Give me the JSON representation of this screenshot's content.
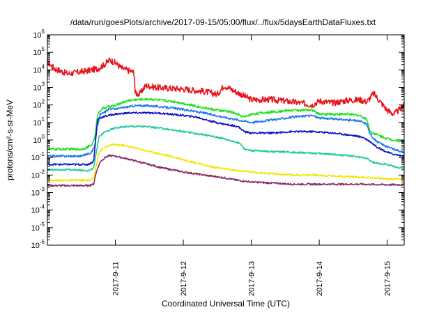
{
  "chart_data": {
    "type": "line",
    "title": "/data/run/goesPlots/archive/2017-09-15/05:00/flux/../flux/5daysEarthDataFluxes.txt",
    "xlabel": "Coordinated Universal Time (UTC)",
    "ylabel": "protons/cm²-s-sr-MeV",
    "yscale": "log",
    "ylim": [
      1e-06,
      1000000.0
    ],
    "xlim": [
      0,
      5.25
    ],
    "y_ticks": [
      {
        "value": 1e-06,
        "base": "10",
        "exp": "-6"
      },
      {
        "value": 1e-05,
        "base": "10",
        "exp": "-5"
      },
      {
        "value": 0.0001,
        "base": "10",
        "exp": "-4"
      },
      {
        "value": 0.001,
        "base": "10",
        "exp": "-3"
      },
      {
        "value": 0.01,
        "base": "10",
        "exp": "-2"
      },
      {
        "value": 0.1,
        "base": "10",
        "exp": "-1"
      },
      {
        "value": 1,
        "base": "10",
        "exp": "0"
      },
      {
        "value": 10,
        "base": "10",
        "exp": "1"
      },
      {
        "value": 100,
        "base": "10",
        "exp": "2"
      },
      {
        "value": 1000,
        "base": "10",
        "exp": "3"
      },
      {
        "value": 10000,
        "base": "10",
        "exp": "4"
      },
      {
        "value": 100000,
        "base": "10",
        "exp": "5"
      },
      {
        "value": 1000000,
        "base": "10",
        "exp": "6"
      }
    ],
    "x_ticks": [
      {
        "value": 1,
        "label": "2017-9-11"
      },
      {
        "value": 2,
        "label": "2017-9-12"
      },
      {
        "value": 3,
        "label": "2017-9-13"
      },
      {
        "value": 4,
        "label": "2017-9-14"
      },
      {
        "value": 5,
        "label": "2017-9-15"
      }
    ],
    "grid": false,
    "series": [
      {
        "color": "#e8141c",
        "noise": 0.18,
        "points": [
          [
            0,
            30000
          ],
          [
            0.1,
            12000
          ],
          [
            0.3,
            6000
          ],
          [
            0.6,
            9000
          ],
          [
            0.75,
            12000
          ],
          [
            0.85,
            22000
          ],
          [
            0.92,
            38000
          ],
          [
            1.0,
            25000
          ],
          [
            1.1,
            12000
          ],
          [
            1.2,
            9000
          ],
          [
            1.28,
            7000
          ],
          [
            1.29,
            500
          ],
          [
            1.35,
            400
          ],
          [
            1.45,
            1300
          ],
          [
            1.6,
            1000
          ],
          [
            2.0,
            800
          ],
          [
            2.3,
            600
          ],
          [
            2.5,
            400
          ],
          [
            2.6,
            1300
          ],
          [
            2.7,
            800
          ],
          [
            2.8,
            500
          ],
          [
            3.0,
            200
          ],
          [
            3.3,
            200
          ],
          [
            3.6,
            150
          ],
          [
            3.9,
            100
          ],
          [
            4.0,
            170
          ],
          [
            4.2,
            130
          ],
          [
            4.4,
            180
          ],
          [
            4.6,
            200
          ],
          [
            4.7,
            150
          ],
          [
            4.8,
            450
          ],
          [
            4.9,
            150
          ],
          [
            5.0,
            50
          ],
          [
            5.1,
            30
          ],
          [
            5.2,
            60
          ],
          [
            5.25,
            150
          ]
        ]
      },
      {
        "color": "#22e022",
        "noise": 0.07,
        "points": [
          [
            0,
            0.3
          ],
          [
            0.5,
            0.3
          ],
          [
            0.6,
            0.4
          ],
          [
            0.65,
            0.5
          ],
          [
            0.7,
            1.5
          ],
          [
            0.74,
            30
          ],
          [
            0.8,
            60
          ],
          [
            0.9,
            80
          ],
          [
            1.0,
            90
          ],
          [
            1.1,
            140
          ],
          [
            1.2,
            180
          ],
          [
            1.3,
            200
          ],
          [
            1.5,
            220
          ],
          [
            1.7,
            180
          ],
          [
            1.9,
            150
          ],
          [
            2.1,
            100
          ],
          [
            2.3,
            70
          ],
          [
            2.5,
            50
          ],
          [
            2.7,
            40
          ],
          [
            2.9,
            20
          ],
          [
            3.0,
            30
          ],
          [
            3.3,
            40
          ],
          [
            3.6,
            50
          ],
          [
            3.9,
            50
          ],
          [
            4.0,
            30
          ],
          [
            4.2,
            30
          ],
          [
            4.4,
            30
          ],
          [
            4.6,
            25
          ],
          [
            4.7,
            15
          ],
          [
            4.75,
            3
          ],
          [
            4.85,
            2
          ],
          [
            5.0,
            1.2
          ],
          [
            5.1,
            1
          ],
          [
            5.25,
            0.8
          ]
        ]
      },
      {
        "color": "#1e78f0",
        "noise": 0.06,
        "points": [
          [
            0,
            0.12
          ],
          [
            0.5,
            0.12
          ],
          [
            0.65,
            0.2
          ],
          [
            0.7,
            0.5
          ],
          [
            0.73,
            5
          ],
          [
            0.78,
            30
          ],
          [
            0.85,
            40
          ],
          [
            0.9,
            60
          ],
          [
            1.0,
            60
          ],
          [
            1.2,
            80
          ],
          [
            1.3,
            90
          ],
          [
            1.5,
            90
          ],
          [
            1.8,
            70
          ],
          [
            2.0,
            55
          ],
          [
            2.3,
            35
          ],
          [
            2.6,
            20
          ],
          [
            2.9,
            12
          ],
          [
            3.0,
            10
          ],
          [
            3.3,
            14
          ],
          [
            3.6,
            20
          ],
          [
            3.9,
            25
          ],
          [
            4.0,
            18
          ],
          [
            4.3,
            15
          ],
          [
            4.6,
            12
          ],
          [
            4.7,
            8
          ],
          [
            4.75,
            2
          ],
          [
            4.85,
            0.8
          ],
          [
            5.0,
            0.4
          ],
          [
            5.1,
            0.3
          ],
          [
            5.25,
            0.2
          ]
        ]
      },
      {
        "color": "#1010c8",
        "noise": 0.05,
        "points": [
          [
            0,
            0.04
          ],
          [
            0.3,
            0.04
          ],
          [
            0.6,
            0.04
          ],
          [
            0.68,
            0.06
          ],
          [
            0.71,
            1
          ],
          [
            0.74,
            15
          ],
          [
            0.8,
            20
          ],
          [
            0.9,
            25
          ],
          [
            1.0,
            30
          ],
          [
            1.2,
            35
          ],
          [
            1.4,
            35
          ],
          [
            1.6,
            35
          ],
          [
            1.8,
            30
          ],
          [
            2.0,
            25
          ],
          [
            2.2,
            20
          ],
          [
            2.4,
            12
          ],
          [
            2.6,
            8
          ],
          [
            2.8,
            6
          ],
          [
            2.9,
            3
          ],
          [
            3.0,
            2.5
          ],
          [
            3.3,
            2.5
          ],
          [
            3.6,
            3
          ],
          [
            3.9,
            3
          ],
          [
            4.2,
            2.5
          ],
          [
            4.5,
            1.8
          ],
          [
            4.65,
            1.4
          ],
          [
            4.75,
            0.8
          ],
          [
            4.85,
            0.4
          ],
          [
            5.0,
            0.2
          ],
          [
            5.1,
            0.15
          ],
          [
            5.25,
            0.12
          ]
        ]
      },
      {
        "color": "#1ec8a0",
        "noise": 0.05,
        "points": [
          [
            0,
            0.02
          ],
          [
            0.3,
            0.02
          ],
          [
            0.6,
            0.018
          ],
          [
            0.68,
            0.025
          ],
          [
            0.72,
            0.2
          ],
          [
            0.76,
            1.5
          ],
          [
            0.82,
            2.5
          ],
          [
            0.9,
            3.5
          ],
          [
            1.0,
            5
          ],
          [
            1.2,
            6
          ],
          [
            1.4,
            6
          ],
          [
            1.6,
            5
          ],
          [
            1.8,
            4
          ],
          [
            2.0,
            3
          ],
          [
            2.3,
            2
          ],
          [
            2.6,
            1.2
          ],
          [
            2.85,
            0.6
          ],
          [
            2.9,
            0.3
          ],
          [
            3.0,
            0.25
          ],
          [
            3.3,
            0.22
          ],
          [
            3.6,
            0.2
          ],
          [
            3.9,
            0.18
          ],
          [
            4.2,
            0.15
          ],
          [
            4.5,
            0.12
          ],
          [
            4.7,
            0.09
          ],
          [
            4.8,
            0.05
          ],
          [
            5.0,
            0.04
          ],
          [
            5.1,
            0.03
          ],
          [
            5.25,
            0.025
          ]
        ]
      },
      {
        "color": "#f2e600",
        "noise": 0.05,
        "points": [
          [
            0,
            0.005
          ],
          [
            0.3,
            0.005
          ],
          [
            0.6,
            0.005
          ],
          [
            0.68,
            0.006
          ],
          [
            0.72,
            0.04
          ],
          [
            0.76,
            0.2
          ],
          [
            0.85,
            0.4
          ],
          [
            0.95,
            0.55
          ],
          [
            1.1,
            0.5
          ],
          [
            1.3,
            0.35
          ],
          [
            1.5,
            0.22
          ],
          [
            1.8,
            0.12
          ],
          [
            2.1,
            0.06
          ],
          [
            2.4,
            0.03
          ],
          [
            2.7,
            0.02
          ],
          [
            3.0,
            0.015
          ],
          [
            3.3,
            0.012
          ],
          [
            3.6,
            0.01
          ],
          [
            3.9,
            0.01
          ],
          [
            4.2,
            0.009
          ],
          [
            4.5,
            0.008
          ],
          [
            4.8,
            0.007
          ],
          [
            5.0,
            0.006
          ],
          [
            5.25,
            0.006
          ]
        ]
      },
      {
        "color": "#8b2a62",
        "noise": 0.05,
        "points": [
          [
            0,
            0.0025
          ],
          [
            0.3,
            0.0025
          ],
          [
            0.6,
            0.0025
          ],
          [
            0.68,
            0.003
          ],
          [
            0.72,
            0.015
          ],
          [
            0.78,
            0.06
          ],
          [
            0.85,
            0.1
          ],
          [
            0.92,
            0.13
          ],
          [
            1.0,
            0.12
          ],
          [
            1.2,
            0.08
          ],
          [
            1.4,
            0.05
          ],
          [
            1.7,
            0.025
          ],
          [
            2.0,
            0.015
          ],
          [
            2.3,
            0.01
          ],
          [
            2.6,
            0.007
          ],
          [
            2.8,
            0.005
          ],
          [
            3.0,
            0.004
          ],
          [
            3.3,
            0.0035
          ],
          [
            3.6,
            0.003
          ],
          [
            3.9,
            0.003
          ],
          [
            4.2,
            0.003
          ],
          [
            4.6,
            0.003
          ],
          [
            5.0,
            0.0028
          ],
          [
            5.25,
            0.0028
          ]
        ]
      }
    ]
  }
}
